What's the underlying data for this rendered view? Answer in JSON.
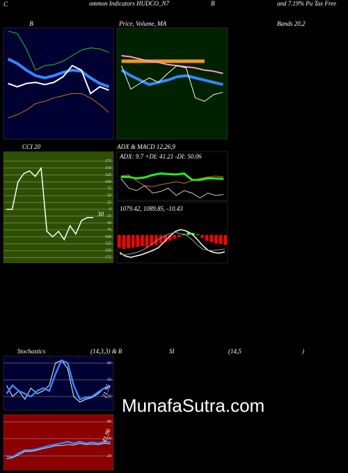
{
  "header": {
    "items": [
      "C",
      "ommon Indicators HUDCO_N7",
      "B",
      "and 7.19% Pu Tax Free",
      "Bands 20,2",
      "(14,3,3) & R",
      "SI",
      "(14,5",
      ")"
    ],
    "watermark": "MunafaSutra.com"
  },
  "chart_data": [
    {
      "type": "line",
      "title": "B",
      "ylim": [
        0,
        100
      ],
      "series": [
        {
          "name": "upper",
          "color": "#22cc22",
          "width": 1,
          "values": [
            97,
            95,
            81,
            62,
            66,
            67,
            70,
            75,
            80,
            82,
            81,
            78
          ]
        },
        {
          "name": "middle",
          "color": "#3388ff",
          "width": 4,
          "values": [
            72,
            68,
            62,
            57,
            55,
            57,
            60,
            62,
            61,
            55,
            50,
            47
          ]
        },
        {
          "name": "price",
          "color": "#ffffff",
          "width": 2,
          "values": [
            50,
            47,
            50,
            51,
            49,
            51,
            56,
            66,
            62,
            41,
            47,
            44
          ]
        },
        {
          "name": "lower",
          "color": "#cc7711",
          "width": 1,
          "values": [
            19,
            22,
            26,
            32,
            34,
            37,
            39,
            41,
            41,
            37,
            31,
            24
          ]
        }
      ]
    },
    {
      "type": "line",
      "title": "Price, Volume, MA",
      "ylim": [
        0,
        100
      ],
      "series": [
        {
          "name": "ma-long",
          "color": "#ee9922",
          "width": 5,
          "values": [
            70,
            70,
            70,
            70,
            70,
            70,
            70,
            70,
            70,
            70,
            null,
            null
          ]
        },
        {
          "name": "ma-mid",
          "color": "#ff99cc",
          "width": 2,
          "values": [
            75,
            74,
            72,
            70,
            69,
            67,
            66,
            65,
            64,
            62,
            61,
            59
          ]
        },
        {
          "name": "ma-short",
          "color": "#3388ff",
          "width": 4,
          "values": [
            62,
            57,
            53,
            49,
            51,
            53,
            56,
            57,
            55,
            53,
            51,
            49
          ]
        },
        {
          "name": "price",
          "color": "#ffffff",
          "width": 1,
          "values": [
            66,
            45,
            50,
            55,
            51,
            59,
            66,
            64,
            37,
            34,
            40,
            42
          ]
        }
      ]
    },
    {
      "type": "line",
      "title": "CCI 20",
      "ylim": [
        -195,
        210
      ],
      "grid": true,
      "yticks": [
        175,
        150,
        125,
        100,
        75,
        50,
        25,
        0,
        {
          "value": -25,
          "label": "25"
        },
        {
          "value": -50,
          "label": "50"
        },
        {
          "value": -75,
          "label": "75"
        },
        {
          "value": -100,
          "label": "100"
        },
        {
          "value": -125,
          "label": "125"
        },
        {
          "value": -150,
          "label": "150"
        },
        {
          "value": -175,
          "label": "175"
        }
      ],
      "annotations": [
        "30"
      ],
      "series": [
        {
          "name": "cci",
          "color": "#ffffff",
          "width": 1.5,
          "values": [
            0,
            0,
            100,
            130,
            140,
            120,
            150,
            -80,
            -100,
            -80,
            -110,
            -60,
            -90,
            -40,
            -30,
            -30,
            null,
            null,
            null
          ]
        }
      ]
    },
    {
      "type": "line",
      "title": "ADX  & MACD 12,26,9",
      "ylim": [
        0,
        100
      ],
      "annotations": [
        "ADX: 9.7 +DI: 41.21 -DI: 50.06"
      ],
      "series": [
        {
          "name": "plus-di",
          "color": "#22ee22",
          "width": 3,
          "values": [
            48,
            48,
            45,
            47,
            52,
            55,
            54,
            53,
            55,
            42,
            42,
            45,
            45,
            44
          ]
        },
        {
          "name": "minus-di",
          "color": "#cc7711",
          "width": 1,
          "values": [
            50,
            52,
            40,
            30,
            28,
            32,
            35,
            38,
            35,
            40,
            45,
            48,
            50,
            48
          ]
        },
        {
          "name": "adx",
          "color": "#cccccc",
          "width": 1,
          "values": [
            45,
            25,
            20,
            30,
            15,
            18,
            25,
            10,
            20,
            15,
            5,
            15,
            10,
            12
          ]
        }
      ]
    },
    {
      "type": "line",
      "ylim": [
        -40,
        48
      ],
      "annotations": [
        "1079.42,  1089.85,  -10.43"
      ],
      "series": [
        {
          "name": "histogram",
          "type": "bar",
          "color": "#ff0000",
          "pos_color": "#22ee22",
          "values": [
            -18,
            -20,
            -19,
            -18,
            -17,
            -16,
            -18,
            -15,
            -14,
            -12,
            -10,
            -8,
            -5,
            -3,
            2,
            4,
            3,
            1,
            -4,
            -8,
            -10,
            -12,
            -13,
            -14
          ]
        },
        {
          "name": "macd",
          "color": "#ffffff",
          "width": 1.5,
          "values": [
            -25,
            -30,
            -32,
            -30,
            -28,
            -25,
            -22,
            -18,
            -10,
            -2,
            5,
            8,
            6,
            2,
            -6,
            -15,
            -22,
            -25,
            -26,
            -24
          ]
        },
        {
          "name": "signal",
          "color": "#999999",
          "width": 1,
          "values": [
            -28,
            -28,
            -27,
            -25,
            -22,
            -18,
            -12,
            -6,
            -2,
            2,
            4,
            2,
            0,
            -6,
            -14,
            -20,
            -22,
            -22,
            -21,
            -20
          ]
        }
      ]
    },
    {
      "type": "line",
      "title": "Stochastics",
      "ylim": [
        -5,
        92.5
      ],
      "grid": true,
      "yticks": [
        80,
        50,
        20
      ],
      "annotations": [
        "21.95"
      ],
      "series": [
        {
          "name": "k",
          "color": "#ffffff",
          "width": 1,
          "values": [
            40,
            20,
            30,
            15,
            35,
            25,
            30,
            40,
            80,
            85,
            70,
            20,
            10,
            15,
            18,
            25,
            35,
            38
          ]
        },
        {
          "name": "d",
          "color": "#3388ff",
          "width": 2.5,
          "values": [
            25,
            40,
            30,
            25,
            20,
            30,
            35,
            30,
            60,
            85,
            80,
            40,
            15,
            18,
            20,
            28,
            35,
            38
          ]
        }
      ]
    },
    {
      "type": "line",
      "ylim": [
        -5,
        92.5
      ],
      "grid": true,
      "yticks": [
        80,
        50,
        20
      ],
      "annotations": [
        "41.96"
      ],
      "series": [
        {
          "name": "rsi",
          "color": "#3388ff",
          "width": 2.5,
          "values": [
            20,
            18,
            25,
            30,
            30,
            32,
            35,
            38,
            40,
            42,
            45,
            42,
            45,
            42,
            44,
            42,
            45,
            44
          ]
        },
        {
          "name": "rsi-avg",
          "color": "#dddddd",
          "width": 1,
          "values": [
            15,
            17,
            22,
            28,
            28,
            30,
            33,
            35,
            38,
            38,
            40,
            39,
            42,
            40,
            41,
            40,
            42,
            41
          ]
        }
      ]
    }
  ]
}
